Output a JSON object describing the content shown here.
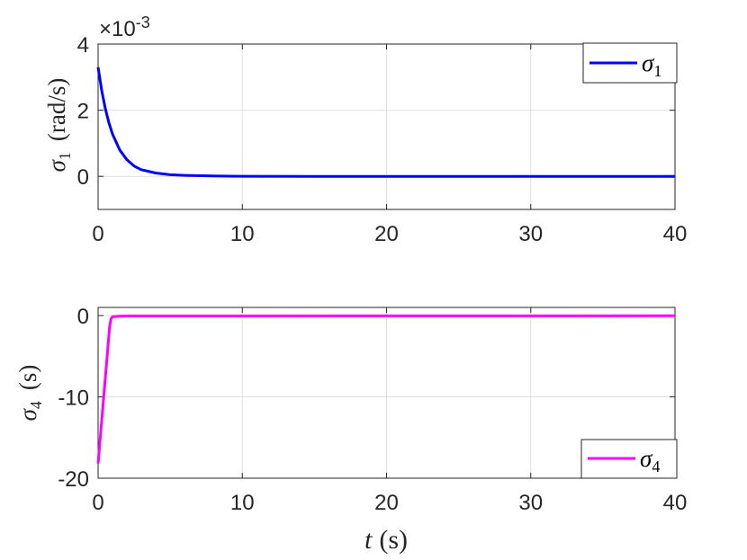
{
  "chart_data": [
    {
      "type": "line",
      "xlim": [
        0,
        40
      ],
      "ylim": [
        -0.001,
        0.004
      ],
      "x_ticks": [
        0,
        10,
        20,
        30,
        40
      ],
      "x_tick_labels": [
        "0",
        "10",
        "20",
        "30",
        "40"
      ],
      "y_ticks": [
        0,
        0.002,
        0.004
      ],
      "y_tick_labels": [
        "0",
        "2",
        "4"
      ],
      "y_exponent_label": "×10",
      "y_exponent_power": "-3",
      "ylabel_symbol": "σ",
      "ylabel_subscript": "1",
      "ylabel_unit": "(rad/s)",
      "xlabel": "",
      "grid": true,
      "legend_position": "top-right",
      "series": [
        {
          "name_symbol": "σ",
          "name_subscript": "1",
          "color": "#0000ff",
          "x": [
            0,
            0.25,
            0.5,
            0.75,
            1,
            1.5,
            2,
            2.5,
            3,
            4,
            5,
            6,
            8,
            10,
            15,
            20,
            30,
            40
          ],
          "y": [
            0.0033,
            0.0026,
            0.00205,
            0.00162,
            0.00128,
            0.0008,
            0.0005,
            0.00031,
            0.0002,
            0.0001,
            5e-05,
            3e-05,
            1e-05,
            4e-06,
            0,
            0,
            0,
            0
          ]
        }
      ]
    },
    {
      "type": "line",
      "xlim": [
        0,
        40
      ],
      "ylim": [
        -20,
        1
      ],
      "x_ticks": [
        0,
        10,
        20,
        30,
        40
      ],
      "x_tick_labels": [
        "0",
        "10",
        "20",
        "30",
        "40"
      ],
      "y_ticks": [
        -20,
        -10,
        0
      ],
      "y_tick_labels": [
        "-20",
        "-10",
        "0"
      ],
      "ylabel_symbol": "σ",
      "ylabel_subscript": "4",
      "ylabel_unit": "(s)",
      "xlabel_symbol": "t",
      "xlabel_unit": "(s)",
      "grid": true,
      "legend_position": "bottom-right",
      "series": [
        {
          "name_symbol": "σ",
          "name_subscript": "4",
          "color": "#ff00ff",
          "x": [
            0,
            0.2,
            0.4,
            0.6,
            0.8,
            0.9,
            1.0,
            1.5,
            2,
            40
          ],
          "y": [
            -18.2,
            -14.0,
            -9.8,
            -5.6,
            -1.4,
            -0.4,
            -0.15,
            -0.08,
            -0.05,
            -0.03
          ]
        }
      ]
    }
  ]
}
